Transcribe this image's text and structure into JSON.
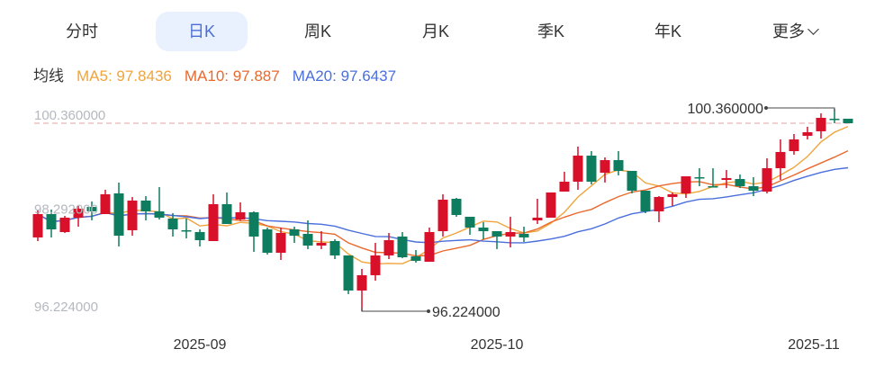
{
  "tabs": [
    {
      "label": "分时",
      "active": false
    },
    {
      "label": "日K",
      "active": true
    },
    {
      "label": "周K",
      "active": false
    },
    {
      "label": "月K",
      "active": false
    },
    {
      "label": "季K",
      "active": false
    },
    {
      "label": "年K",
      "active": false
    },
    {
      "label": "更多",
      "active": false,
      "icon": "chevron-down-icon"
    }
  ],
  "legend": {
    "title": "均线",
    "ma5": "MA5: 97.8436",
    "ma10": "MA10: 97.887",
    "ma20": "MA20: 97.6437"
  },
  "colors": {
    "up": "#d9102a",
    "down": "#0e7c5e",
    "ma5": "#f0a43c",
    "ma10": "#e9692c",
    "ma20": "#4a6fdc",
    "active_tab_bg": "#e8f1fd",
    "active_tab_text": "#4b6fd6",
    "last_price_line": "#e8b4b4"
  },
  "chart_data": {
    "type": "candlestick",
    "y_labels": [
      "100.360000",
      "98.292000",
      "96.224000"
    ],
    "ylim": [
      96.224,
      100.36
    ],
    "x_labels": [
      {
        "label": "2025-09",
        "index": 12
      },
      {
        "label": "2025-10",
        "index": 34
      },
      {
        "label": "2025-11",
        "index": 58
      }
    ],
    "max_annotation": {
      "label": "100.360000",
      "index": 59,
      "value": 100.36
    },
    "min_annotation": {
      "label": "96.224000",
      "index": 24,
      "value": 96.224
    },
    "last_price": 100.066,
    "moving_averages": [
      5,
      10,
      20
    ],
    "ohlc": [
      [
        97.732,
        98.283,
        97.658,
        98.209
      ],
      [
        98.209,
        98.301,
        97.732,
        97.897
      ],
      [
        97.842,
        98.173,
        97.823,
        98.136
      ],
      [
        98.136,
        98.375,
        97.952,
        98.32
      ],
      [
        98.357,
        98.467,
        98.081,
        98.265
      ],
      [
        98.209,
        98.706,
        98.209,
        98.614
      ],
      [
        98.632,
        98.853,
        97.548,
        97.768
      ],
      [
        97.879,
        98.559,
        97.768,
        98.485
      ],
      [
        98.485,
        98.577,
        98.081,
        98.265
      ],
      [
        98.265,
        98.761,
        98.099,
        98.136
      ],
      [
        98.118,
        98.228,
        97.75,
        97.897
      ],
      [
        97.879,
        98.118,
        97.713,
        97.86
      ],
      [
        97.842,
        97.897,
        97.548,
        97.676
      ],
      [
        97.658,
        98.614,
        97.658,
        98.412
      ],
      [
        98.412,
        98.651,
        98.007,
        98.007
      ],
      [
        98.099,
        98.448,
        98.081,
        98.246
      ],
      [
        98.246,
        98.265,
        97.437,
        97.75
      ],
      [
        97.897,
        97.934,
        97.382,
        97.419
      ],
      [
        97.419,
        97.934,
        97.272,
        97.823
      ],
      [
        97.897,
        97.952,
        97.621,
        97.768
      ],
      [
        97.805,
        98.081,
        97.493,
        97.566
      ],
      [
        97.566,
        97.86,
        97.493,
        97.621
      ],
      [
        97.658,
        97.695,
        97.29,
        97.364
      ],
      [
        97.364,
        97.364,
        96.574,
        96.647
      ],
      [
        96.647,
        97.088,
        96.224,
        96.96
      ],
      [
        96.96,
        97.621,
        96.849,
        97.364
      ],
      [
        97.364,
        97.823,
        97.29,
        97.676
      ],
      [
        97.75,
        97.842,
        97.309,
        97.327
      ],
      [
        97.345,
        97.474,
        97.217,
        97.254
      ],
      [
        97.235,
        97.934,
        97.235,
        97.842
      ],
      [
        97.86,
        98.614,
        97.75,
        98.504
      ],
      [
        98.522,
        98.54,
        98.154,
        98.191
      ],
      [
        98.154,
        98.154,
        97.787,
        97.934
      ],
      [
        97.934,
        98.044,
        97.695,
        97.86
      ],
      [
        97.86,
        97.86,
        97.493,
        97.75
      ],
      [
        97.75,
        98.154,
        97.529,
        97.842
      ],
      [
        97.805,
        97.952,
        97.64,
        97.732
      ],
      [
        98.081,
        98.522,
        98.007,
        98.136
      ],
      [
        98.136,
        98.651,
        98.136,
        98.651
      ],
      [
        98.669,
        99.073,
        98.669,
        98.871
      ],
      [
        98.871,
        99.588,
        98.706,
        99.404
      ],
      [
        99.404,
        99.496,
        98.816,
        98.871
      ],
      [
        99.055,
        99.367,
        98.853,
        99.312
      ],
      [
        99.312,
        99.496,
        99.0,
        99.092
      ],
      [
        99.092,
        99.092,
        98.632,
        98.687
      ],
      [
        98.687,
        98.687,
        98.228,
        98.265
      ],
      [
        98.265,
        98.577,
        98.044,
        98.559
      ],
      [
        98.559,
        98.651,
        98.375,
        98.614
      ],
      [
        98.632,
        98.981,
        98.54,
        98.981
      ],
      [
        98.963,
        99.147,
        98.779,
        98.945
      ],
      [
        98.779,
        99.147,
        98.761,
        98.761
      ],
      [
        98.908,
        99.11,
        98.742,
        98.945
      ],
      [
        98.926,
        99.018,
        98.742,
        98.779
      ],
      [
        98.779,
        98.963,
        98.577,
        98.687
      ],
      [
        98.669,
        99.349,
        98.632,
        99.147
      ],
      [
        99.147,
        99.735,
        98.908,
        99.478
      ],
      [
        99.496,
        99.845,
        99.423,
        99.735
      ],
      [
        99.809,
        99.992,
        99.735,
        99.882
      ],
      [
        99.901,
        100.268,
        99.753,
        100.176
      ],
      [
        100.158,
        100.36,
        100.066,
        100.139
      ],
      [
        100.158,
        100.158,
        100.066,
        100.066
      ]
    ]
  }
}
